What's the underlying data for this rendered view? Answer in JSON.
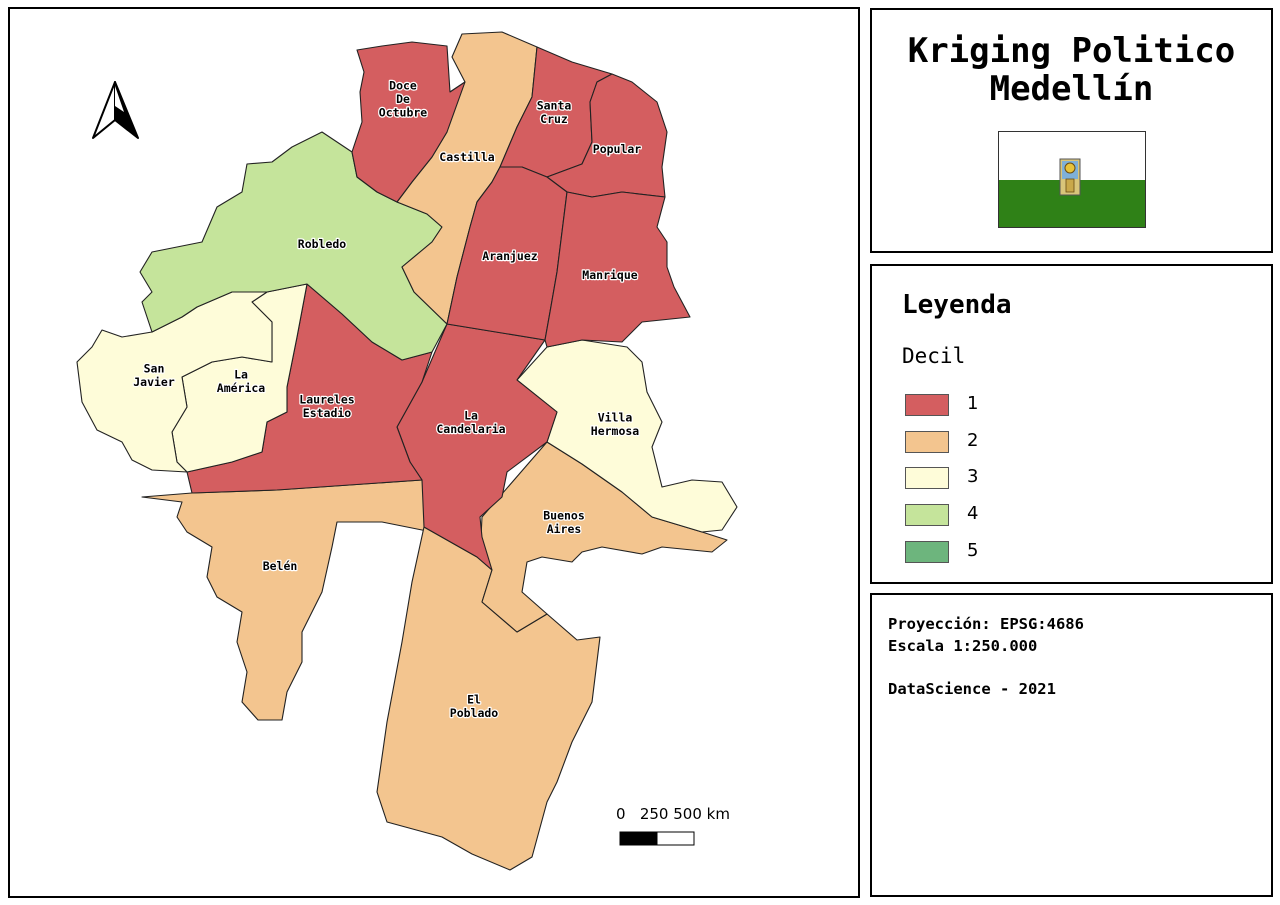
{
  "map": {
    "title": "Kriging Politico Medellín",
    "north_arrow": "north-arrow-icon",
    "scale_bar": {
      "label": "0   250 500 km"
    },
    "districts": [
      {
        "name": "Doce De Octubre",
        "label_lines": [
          "Doce",
          "De",
          "Octubre"
        ],
        "decil": 1
      },
      {
        "name": "Castilla",
        "label_lines": [
          "Castilla"
        ],
        "decil": 2
      },
      {
        "name": "Santa Cruz",
        "label_lines": [
          "Santa",
          "Cruz"
        ],
        "decil": 1
      },
      {
        "name": "Popular",
        "label_lines": [
          "Popular"
        ],
        "decil": 1
      },
      {
        "name": "Robledo",
        "label_lines": [
          "Robledo"
        ],
        "decil": 4
      },
      {
        "name": "Aranjuez",
        "label_lines": [
          "Aranjuez"
        ],
        "decil": 1
      },
      {
        "name": "Manrique",
        "label_lines": [
          "Manrique"
        ],
        "decil": 1
      },
      {
        "name": "San Javier",
        "label_lines": [
          "San",
          "Javier"
        ],
        "decil": 3
      },
      {
        "name": "La América",
        "label_lines": [
          "La",
          "América"
        ],
        "decil": 3
      },
      {
        "name": "Laureles Estadio",
        "label_lines": [
          "Laureles",
          "Estadio"
        ],
        "decil": 1
      },
      {
        "name": "La Candelaria",
        "label_lines": [
          "La",
          "Candelaria"
        ],
        "decil": 1
      },
      {
        "name": "Villa Hermosa",
        "label_lines": [
          "Villa",
          "Hermosa"
        ],
        "decil": 3
      },
      {
        "name": "Buenos Aires",
        "label_lines": [
          "Buenos",
          "Aires"
        ],
        "decil": 2
      },
      {
        "name": "Belén",
        "label_lines": [
          "Belén"
        ],
        "decil": 2
      },
      {
        "name": "El Poblado",
        "label_lines": [
          "El",
          "Poblado"
        ],
        "decil": 2
      }
    ]
  },
  "flag": {
    "colors": {
      "top": "#ffffff",
      "bottom": "#2f8117"
    },
    "emblem": "coat-of-arms-icon"
  },
  "legend": {
    "title": "Leyenda",
    "subtitle": "Decil",
    "items": [
      {
        "label": "1",
        "color": "#d45e60"
      },
      {
        "label": "2",
        "color": "#f3c58f"
      },
      {
        "label": "3",
        "color": "#fefcd9"
      },
      {
        "label": "4",
        "color": "#c5e49b"
      },
      {
        "label": "5",
        "color": "#6db57d"
      }
    ]
  },
  "info": {
    "projection": "Proyección: EPSG:4686",
    "scale": "Escala 1:250.000",
    "credit": "DataScience - 2021"
  }
}
